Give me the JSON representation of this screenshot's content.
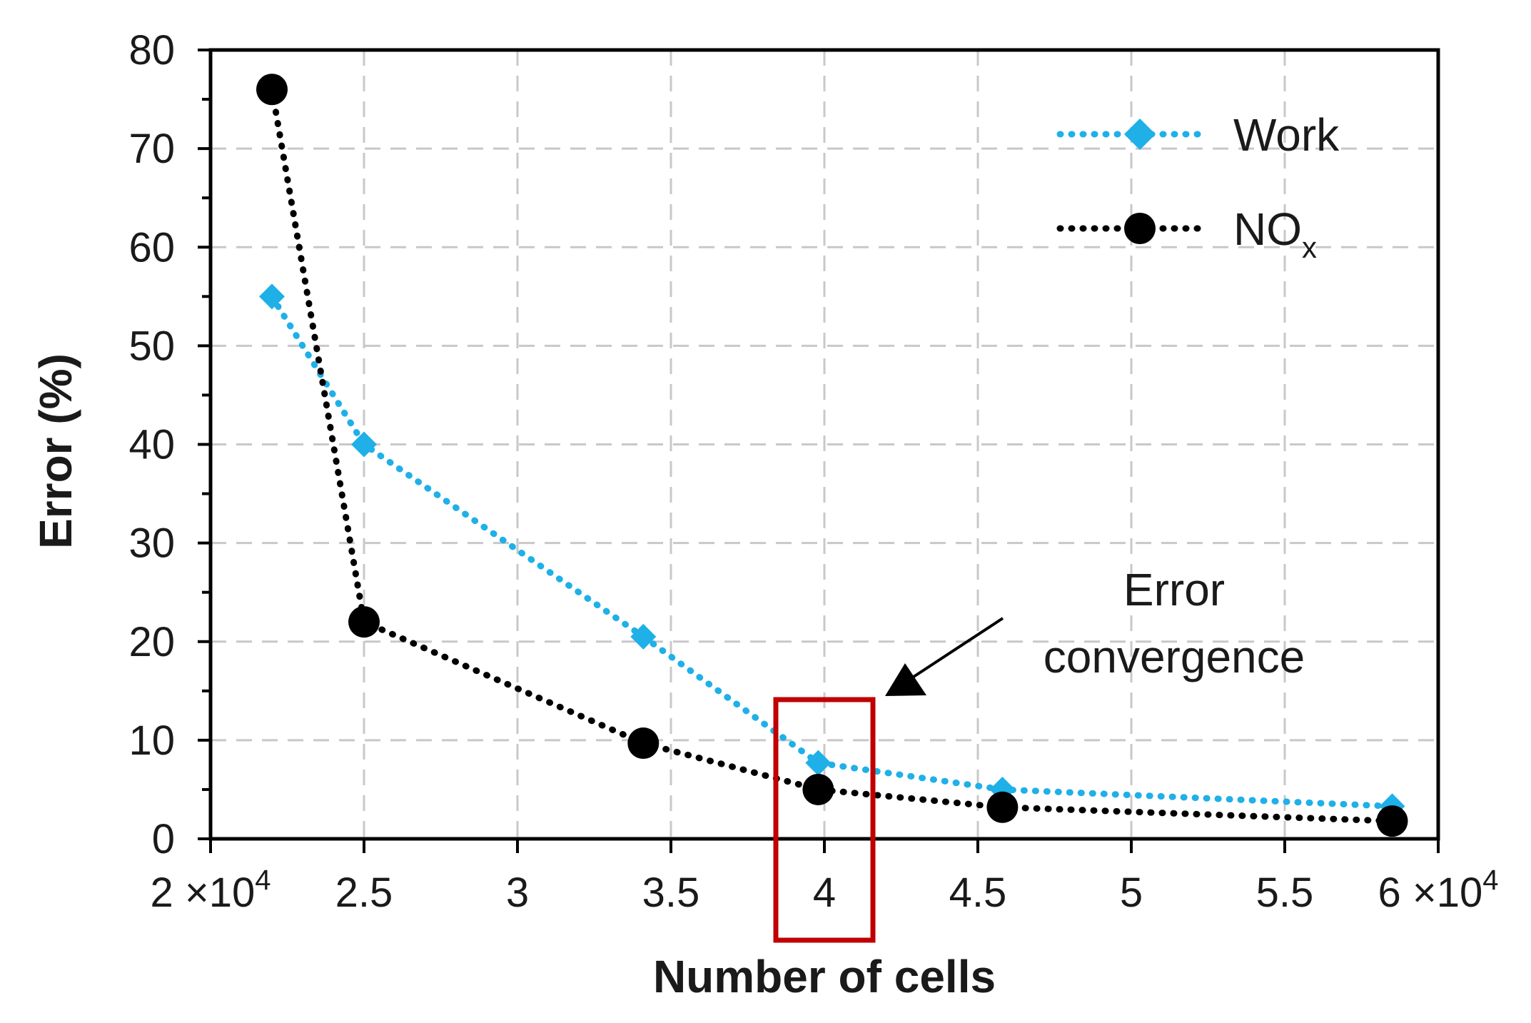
{
  "chart_data": {
    "type": "line",
    "title": "",
    "xlabel": "Number of cells",
    "ylabel": "Error (%)",
    "xlim": [
      20000,
      60000
    ],
    "ylim": [
      0,
      80
    ],
    "grid": true,
    "legend_position": "top-right",
    "x_ticks": [
      20000,
      25000,
      30000,
      35000,
      40000,
      45000,
      50000,
      55000,
      60000
    ],
    "x_tick_labels": [
      "2",
      "2.5",
      "3",
      "3.5",
      "4",
      "4.5",
      "5",
      "5.5",
      "6"
    ],
    "x_tick_exponent": "×10",
    "x_tick_exponent_power": "4",
    "y_ticks": [
      0,
      10,
      20,
      30,
      40,
      50,
      60,
      70,
      80
    ],
    "y_tick_labels": [
      "0",
      "10",
      "20",
      "30",
      "40",
      "50",
      "60",
      "70",
      "80"
    ],
    "series": [
      {
        "name": "Work",
        "color": "#1fb0e8",
        "marker": "diamond",
        "line_style": "dotted",
        "x": [
          22000,
          25000,
          34100,
          39800,
          45800,
          58500
        ],
        "values": [
          55,
          40,
          20.5,
          7.7,
          5,
          3.3
        ]
      },
      {
        "name": "NOx",
        "label_main": "NO",
        "label_sub": "x",
        "color": "#000000",
        "marker": "circle",
        "line_style": "dotted",
        "x": [
          22000,
          25000,
          34100,
          39800,
          45800,
          58500
        ],
        "values": [
          76,
          22,
          9.7,
          5,
          3.2,
          1.8
        ]
      }
    ],
    "annotations": [
      {
        "text_line1": "Error",
        "text_line2": "convergence",
        "highlight_x": 40000,
        "highlight_color": "#c00000"
      }
    ]
  }
}
